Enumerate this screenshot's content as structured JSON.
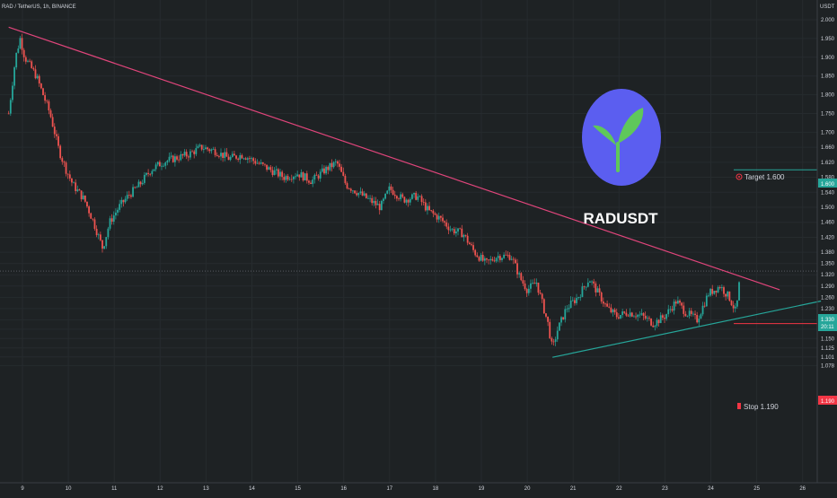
{
  "header": {
    "symbol_text": "RAD / TetherUS, 1h, BINANCE"
  },
  "overlay": {
    "title": "RADUSDT",
    "logo_icon": "sprout-icon",
    "logo_bg": "#5b5ef0",
    "logo_leaf": "#5fc85a"
  },
  "annotations": {
    "target_label": "Target 1.600",
    "target_price": "1.600",
    "stop_label": "Stop 1.190",
    "stop_price": "1.190",
    "current_price": "1.330",
    "countdown": "20:11",
    "target_icon": "target-icon",
    "stop_icon": "stop-icon"
  },
  "colors": {
    "background": "#1e2224",
    "up": "#26a69a",
    "down": "#ef5350",
    "resistance": "#e0457b",
    "support": "#26a69a",
    "target_line": "#26a69a",
    "stop_line": "#f23645",
    "text": "#d1d4dc"
  },
  "chart_data": {
    "type": "candlestick",
    "quote_currency": "USDT",
    "y_range": [
      1.07,
      2.02
    ],
    "y_ticks": [
      "2.000",
      "1.950",
      "1.900",
      "1.850",
      "1.800",
      "1.750",
      "1.700",
      "1.660",
      "1.620",
      "1.580",
      "1.540",
      "1.500",
      "1.460",
      "1.420",
      "1.380",
      "1.350",
      "1.320",
      "1.290",
      "1.260",
      "1.230",
      "1.200",
      "1.175",
      "1.150",
      "1.125",
      "1.101",
      "1.078"
    ],
    "x_ticks": [
      "9",
      "10",
      "11",
      "12",
      "13",
      "14",
      "15",
      "16",
      "17",
      "18",
      "19",
      "20",
      "21",
      "22",
      "23",
      "24",
      "25",
      "26"
    ],
    "x_range": [
      8.7,
      26.6
    ],
    "path": [
      [
        8.7,
        1.75
      ],
      [
        8.85,
        1.9
      ],
      [
        8.95,
        1.95
      ],
      [
        9.05,
        1.9
      ],
      [
        9.3,
        1.85
      ],
      [
        9.6,
        1.75
      ],
      [
        9.8,
        1.65
      ],
      [
        9.95,
        1.6
      ],
      [
        10.1,
        1.56
      ],
      [
        10.35,
        1.52
      ],
      [
        10.55,
        1.46
      ],
      [
        10.75,
        1.39
      ],
      [
        10.9,
        1.46
      ],
      [
        11.1,
        1.5
      ],
      [
        11.3,
        1.53
      ],
      [
        11.55,
        1.56
      ],
      [
        11.8,
        1.6
      ],
      [
        12.05,
        1.62
      ],
      [
        12.3,
        1.63
      ],
      [
        12.6,
        1.64
      ],
      [
        12.9,
        1.66
      ],
      [
        13.2,
        1.65
      ],
      [
        13.5,
        1.63
      ],
      [
        13.8,
        1.64
      ],
      [
        14.1,
        1.62
      ],
      [
        14.4,
        1.6
      ],
      [
        14.7,
        1.58
      ],
      [
        15.0,
        1.59
      ],
      [
        15.3,
        1.57
      ],
      [
        15.6,
        1.6
      ],
      [
        15.85,
        1.62
      ],
      [
        16.05,
        1.56
      ],
      [
        16.3,
        1.54
      ],
      [
        16.55,
        1.52
      ],
      [
        16.8,
        1.5
      ],
      [
        17.0,
        1.55
      ],
      [
        17.3,
        1.52
      ],
      [
        17.6,
        1.53
      ],
      [
        17.85,
        1.49
      ],
      [
        18.1,
        1.47
      ],
      [
        18.35,
        1.44
      ],
      [
        18.6,
        1.43
      ],
      [
        18.85,
        1.38
      ],
      [
        19.1,
        1.35
      ],
      [
        19.35,
        1.37
      ],
      [
        19.65,
        1.37
      ],
      [
        19.85,
        1.31
      ],
      [
        20.0,
        1.28
      ],
      [
        20.2,
        1.3
      ],
      [
        20.45,
        1.19
      ],
      [
        20.55,
        1.12
      ],
      [
        20.65,
        1.17
      ],
      [
        20.85,
        1.23
      ],
      [
        21.1,
        1.26
      ],
      [
        21.35,
        1.31
      ],
      [
        21.55,
        1.27
      ],
      [
        21.75,
        1.23
      ],
      [
        21.95,
        1.21
      ],
      [
        22.2,
        1.22
      ],
      [
        22.5,
        1.21
      ],
      [
        22.75,
        1.19
      ],
      [
        23.0,
        1.21
      ],
      [
        23.25,
        1.25
      ],
      [
        23.45,
        1.22
      ],
      [
        23.7,
        1.2
      ],
      [
        23.95,
        1.27
      ],
      [
        24.2,
        1.29
      ],
      [
        24.4,
        1.26
      ],
      [
        24.55,
        1.22
      ],
      [
        24.65,
        1.33
      ]
    ],
    "resistance_line": [
      [
        8.7,
        1.98
      ],
      [
        25.5,
        1.28
      ]
    ],
    "support_line": [
      [
        20.55,
        1.1
      ],
      [
        26.4,
        1.25
      ]
    ],
    "target": 1.6,
    "stop": 1.19,
    "current": 1.33
  }
}
